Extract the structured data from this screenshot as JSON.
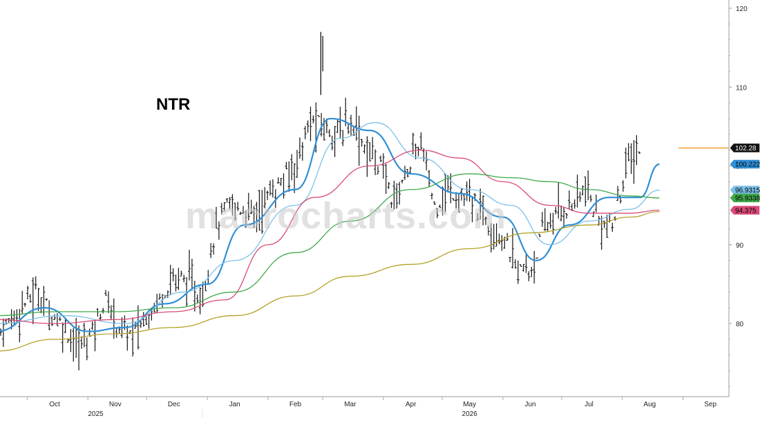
{
  "ticker": "NTR",
  "watermark": "macrocharts.com",
  "chart_data": {
    "type": "ohlc",
    "x_months": [
      "Oct",
      "Nov",
      "Dec",
      "Jan",
      "Feb",
      "Mar",
      "Apr",
      "May",
      "Jun",
      "Jul",
      "Aug",
      "Sep"
    ],
    "x_years": [
      "2025",
      "2026"
    ],
    "y_ticks": [
      80,
      90,
      100,
      110,
      120
    ],
    "ylim": [
      71,
      121
    ],
    "grid": false,
    "price_series": [
      [
        "2025-09-15",
        78.5
      ],
      [
        "2025-09-22",
        80.2
      ],
      [
        "2025-09-29",
        82.5
      ],
      [
        "2025-10-06",
        84.0
      ],
      [
        "2025-10-13",
        81.5
      ],
      [
        "2025-10-20",
        79.5
      ],
      [
        "2025-10-27",
        77.0
      ],
      [
        "2025-11-03",
        79.0
      ],
      [
        "2025-11-10",
        83.0
      ],
      [
        "2025-11-17",
        79.5
      ],
      [
        "2025-11-24",
        78.5
      ],
      [
        "2025-12-01",
        81.0
      ],
      [
        "2025-12-08",
        83.5
      ],
      [
        "2025-12-15",
        86.0
      ],
      [
        "2025-12-22",
        85.5
      ],
      [
        "2025-12-29",
        83.0
      ],
      [
        "2026-01-05",
        92.0
      ],
      [
        "2026-01-12",
        95.0
      ],
      [
        "2026-01-19",
        94.5
      ],
      [
        "2026-01-26",
        94.0
      ],
      [
        "2026-02-02",
        96.5
      ],
      [
        "2026-02-09",
        98.0
      ],
      [
        "2026-02-16",
        101.0
      ],
      [
        "2026-02-23",
        105.5
      ],
      [
        "2026-03-02",
        105.0
      ],
      [
        "2026-03-09",
        104.0
      ],
      [
        "2026-03-16",
        106.0
      ],
      [
        "2026-03-23",
        102.0
      ],
      [
        "2026-03-30",
        100.5
      ],
      [
        "2026-04-06",
        95.5
      ],
      [
        "2026-04-13",
        99.5
      ],
      [
        "2026-04-20",
        103.0
      ],
      [
        "2026-04-27",
        95.0
      ],
      [
        "2026-05-04",
        97.0
      ],
      [
        "2026-05-11",
        96.0
      ],
      [
        "2026-05-18",
        95.0
      ],
      [
        "2026-05-25",
        93.0
      ],
      [
        "2026-06-01",
        91.0
      ],
      [
        "2026-06-08",
        87.0
      ],
      [
        "2026-06-15",
        86.5
      ],
      [
        "2026-06-22",
        92.0
      ],
      [
        "2026-06-29",
        94.0
      ],
      [
        "2026-07-06",
        95.0
      ],
      [
        "2026-07-13",
        97.0
      ],
      [
        "2026-07-20",
        93.0
      ],
      [
        "2026-07-27",
        92.0
      ],
      [
        "2026-08-03",
        100.0
      ],
      [
        "2026-08-10",
        102.28
      ]
    ],
    "moving_averages": [
      {
        "color": "#2f8fd6",
        "label": "100.222",
        "points": [
          [
            "2025-09-15",
            79.0
          ],
          [
            "2025-10-10",
            82.0
          ],
          [
            "2025-11-01",
            79.0
          ],
          [
            "2025-11-20",
            79.5
          ],
          [
            "2025-12-10",
            82.5
          ],
          [
            "2026-01-01",
            85.0
          ],
          [
            "2026-01-20",
            92.5
          ],
          [
            "2026-02-15",
            97.0
          ],
          [
            "2026-03-05",
            106.0
          ],
          [
            "2026-03-25",
            104.5
          ],
          [
            "2026-04-15",
            99.0
          ],
          [
            "2026-05-10",
            96.5
          ],
          [
            "2026-06-01",
            93.5
          ],
          [
            "2026-06-18",
            88.0
          ],
          [
            "2026-07-05",
            92.5
          ],
          [
            "2026-07-25",
            96.0
          ],
          [
            "2026-08-10",
            96.0
          ],
          [
            "2026-08-20",
            100.222
          ]
        ]
      },
      {
        "color": "#7cc0ea",
        "label": "96.9315",
        "points": [
          [
            "2025-09-15",
            80.0
          ],
          [
            "2025-10-20",
            81.0
          ],
          [
            "2025-11-20",
            80.0
          ],
          [
            "2025-12-20",
            84.0
          ],
          [
            "2026-01-15",
            88.0
          ],
          [
            "2026-02-15",
            95.0
          ],
          [
            "2026-03-10",
            103.5
          ],
          [
            "2026-03-28",
            105.5
          ],
          [
            "2026-04-20",
            101.0
          ],
          [
            "2026-05-15",
            97.0
          ],
          [
            "2026-06-05",
            95.0
          ],
          [
            "2026-06-25",
            90.0
          ],
          [
            "2026-07-15",
            93.0
          ],
          [
            "2026-08-05",
            94.5
          ],
          [
            "2026-08-20",
            96.9315
          ]
        ]
      },
      {
        "color": "#d94a78",
        "label": "94.375",
        "points": [
          [
            "2025-09-15",
            80.5
          ],
          [
            "2025-10-15",
            80.0
          ],
          [
            "2025-11-15",
            80.5
          ],
          [
            "2025-12-15",
            81.5
          ],
          [
            "2026-01-10",
            83.0
          ],
          [
            "2026-02-01",
            90.0
          ],
          [
            "2026-02-25",
            96.0
          ],
          [
            "2026-03-25",
            100.0
          ],
          [
            "2026-04-20",
            102.0
          ],
          [
            "2026-05-10",
            101.0
          ],
          [
            "2026-06-01",
            98.0
          ],
          [
            "2026-06-25",
            95.0
          ],
          [
            "2026-07-15",
            94.0
          ],
          [
            "2026-08-05",
            94.0
          ],
          [
            "2026-08-20",
            94.375
          ]
        ]
      },
      {
        "color": "#3fa84a",
        "label": "95.9338",
        "points": [
          [
            "2025-09-15",
            81.0
          ],
          [
            "2025-10-15",
            81.5
          ],
          [
            "2025-11-15",
            81.5
          ],
          [
            "2025-12-15",
            82.0
          ],
          [
            "2026-01-15",
            84.0
          ],
          [
            "2026-02-15",
            89.0
          ],
          [
            "2026-03-15",
            93.0
          ],
          [
            "2026-04-15",
            97.0
          ],
          [
            "2026-05-15",
            99.0
          ],
          [
            "2026-06-05",
            98.5
          ],
          [
            "2026-06-25",
            98.0
          ],
          [
            "2026-07-15",
            97.0
          ],
          [
            "2026-08-05",
            96.2
          ],
          [
            "2026-08-20",
            95.9338
          ]
        ]
      },
      {
        "color": "#b4a126",
        "label": "",
        "points": [
          [
            "2025-09-15",
            76.5
          ],
          [
            "2025-10-15",
            78.0
          ],
          [
            "2025-11-15",
            78.7
          ],
          [
            "2025-12-15",
            79.5
          ],
          [
            "2026-01-15",
            81.0
          ],
          [
            "2026-02-15",
            83.5
          ],
          [
            "2026-03-15",
            86.0
          ],
          [
            "2026-04-15",
            87.5
          ],
          [
            "2026-05-15",
            89.5
          ],
          [
            "2026-06-15",
            91.5
          ],
          [
            "2026-07-15",
            92.5
          ],
          [
            "2026-08-05",
            93.5
          ],
          [
            "2026-08-20",
            94.2
          ]
        ]
      }
    ],
    "last_price": {
      "value": 102.28,
      "label": "102.28",
      "line_color": "#f0a030"
    }
  }
}
